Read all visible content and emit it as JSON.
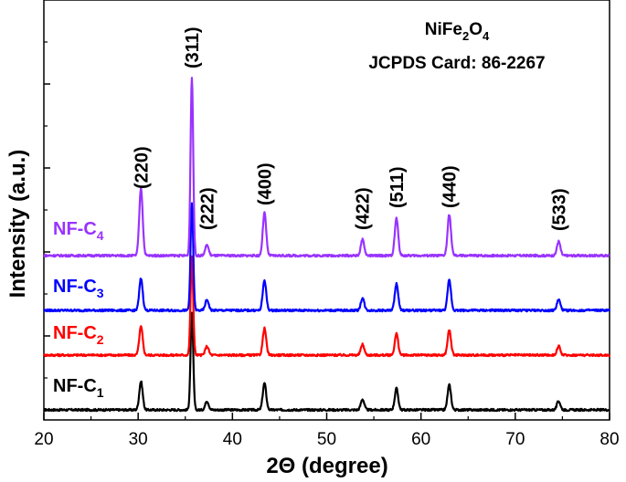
{
  "chart_data": {
    "type": "line",
    "xlabel": "2Θ (degree)",
    "ylabel": "Intensity (a.u.)",
    "xlim": [
      20,
      80
    ],
    "xticks": [
      "20",
      "30",
      "40",
      "50",
      "60",
      "70",
      "80"
    ],
    "annotation": {
      "formula": {
        "base": "NiFe",
        "sub1": "2",
        "mid": "O",
        "sub2": "4"
      },
      "card": "JCPDS Card: 86-2267"
    },
    "peak_labels": [
      {
        "x": 30.3,
        "label": "(220)"
      },
      {
        "x": 35.7,
        "label": "(311)"
      },
      {
        "x": 37.3,
        "label": "(222)"
      },
      {
        "x": 43.4,
        "label": "(400)"
      },
      {
        "x": 53.8,
        "label": "(422)"
      },
      {
        "x": 57.4,
        "label": "(511)"
      },
      {
        "x": 63.0,
        "label": "(440)"
      },
      {
        "x": 74.6,
        "label": "(533)"
      }
    ],
    "peaks_2theta": [
      30.3,
      35.7,
      37.3,
      43.4,
      53.8,
      57.4,
      63.0,
      74.6
    ],
    "series": [
      {
        "name": "NF-C1",
        "label_base": "NF-C",
        "label_sub": "1",
        "color": "#000000",
        "relative_peak_heights": [
          0.16,
          0.55,
          0.05,
          0.15,
          0.06,
          0.12,
          0.14,
          0.05
        ]
      },
      {
        "name": "NF-C2",
        "label_base": "NF-C",
        "label_sub": "2",
        "color": "#ff0000",
        "relative_peak_heights": [
          0.16,
          0.55,
          0.05,
          0.15,
          0.06,
          0.12,
          0.14,
          0.05
        ]
      },
      {
        "name": "NF-C3",
        "label_base": "NF-C",
        "label_sub": "3",
        "color": "#0000ff",
        "relative_peak_heights": [
          0.18,
          0.6,
          0.06,
          0.17,
          0.07,
          0.15,
          0.17,
          0.06
        ]
      },
      {
        "name": "NF-C4",
        "label_base": "NF-C",
        "label_sub": "4",
        "color": "#9933ff",
        "relative_peak_heights": [
          0.38,
          1.0,
          0.06,
          0.24,
          0.09,
          0.21,
          0.23,
          0.08
        ]
      }
    ],
    "grid": false,
    "legend": "inline labels at left of each curve"
  }
}
